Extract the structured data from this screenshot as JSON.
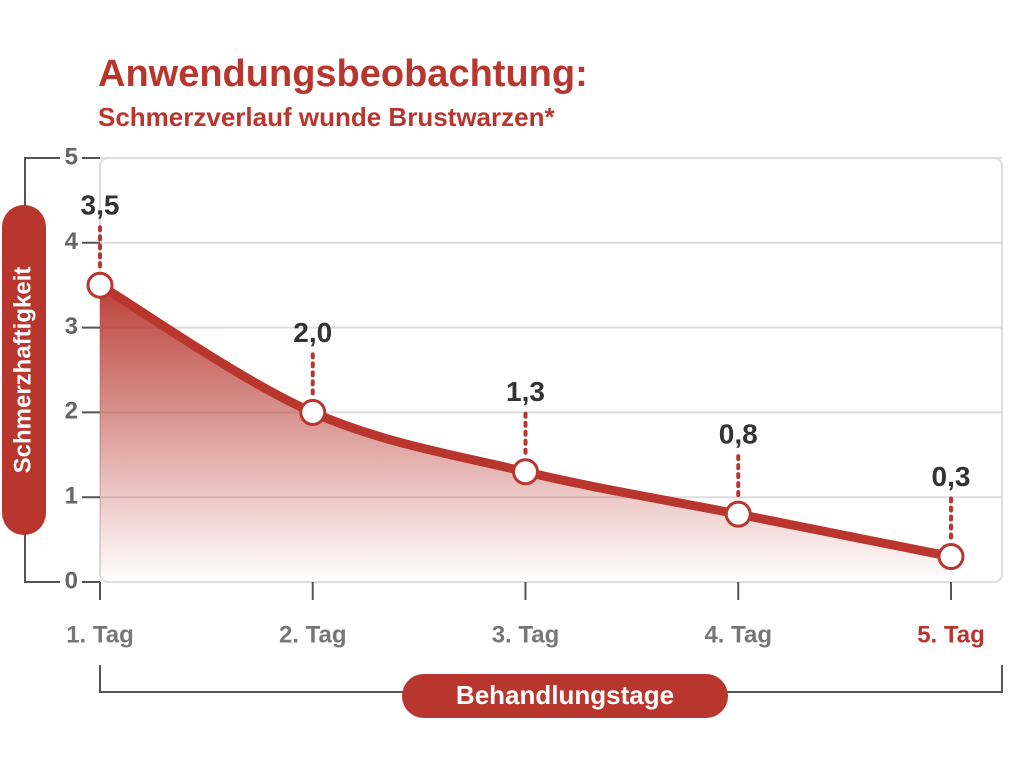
{
  "chart_data": {
    "type": "area",
    "title": "Anwendungsbeobachtung:",
    "subtitle": "Schmerzverlauf wunde Brustwarzen*",
    "y_label": "Schmerzhaftigkeit",
    "x_label": "Behandlungstage",
    "categories": [
      "1. Tag",
      "2. Tag",
      "3. Tag",
      "4. Tag",
      "5. Tag"
    ],
    "values": [
      3.5,
      2.0,
      1.3,
      0.8,
      0.3
    ],
    "value_labels": [
      "3,5",
      "2,0",
      "1,3",
      "0,8",
      "0,3"
    ],
    "color": "#b8362e",
    "ylim": [
      0,
      5
    ],
    "yticks": [
      0,
      1,
      2,
      3,
      4,
      5
    ],
    "grid": true
  }
}
